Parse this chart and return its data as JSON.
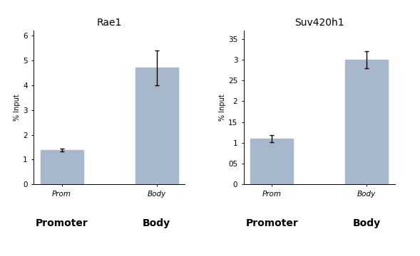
{
  "chart1": {
    "title": "Rae1",
    "categories": [
      "Prom",
      "Body"
    ],
    "xlabel_labels": [
      "Promoter",
      "Body"
    ],
    "values": [
      1.38,
      4.7
    ],
    "errors": [
      0.05,
      0.7
    ],
    "ylim": [
      0,
      6.2
    ],
    "yticks": [
      0,
      1,
      2,
      3,
      4,
      5,
      6
    ],
    "ytick_labels": [
      "0",
      "1",
      "2",
      "3",
      "4",
      "5",
      "6"
    ],
    "ylabel": "% Input"
  },
  "chart2": {
    "title": "Suv420h1",
    "categories": [
      "Prom",
      "Body"
    ],
    "xlabel_labels": [
      "Promoter",
      "Body"
    ],
    "values": [
      1.1,
      3.0
    ],
    "errors": [
      0.08,
      0.2
    ],
    "ylim": [
      0,
      3.7
    ],
    "yticks": [
      0,
      0.5,
      1.0,
      1.5,
      2.0,
      2.5,
      3.0,
      3.5
    ],
    "ytick_labels": [
      "0",
      "05",
      "1",
      "15",
      "2",
      "25",
      "3",
      "35"
    ],
    "ylabel": "% Input"
  },
  "bar_color": "#a8b8cc",
  "error_color": "black",
  "background_color": "#ffffff",
  "title_fontsize": 10,
  "tick_label_fontsize": 7.5,
  "xlabel_small_fontsize": 7.5,
  "xlabel_large_fontsize": 10,
  "ylabel_fontsize": 7,
  "bar_width": 0.45
}
